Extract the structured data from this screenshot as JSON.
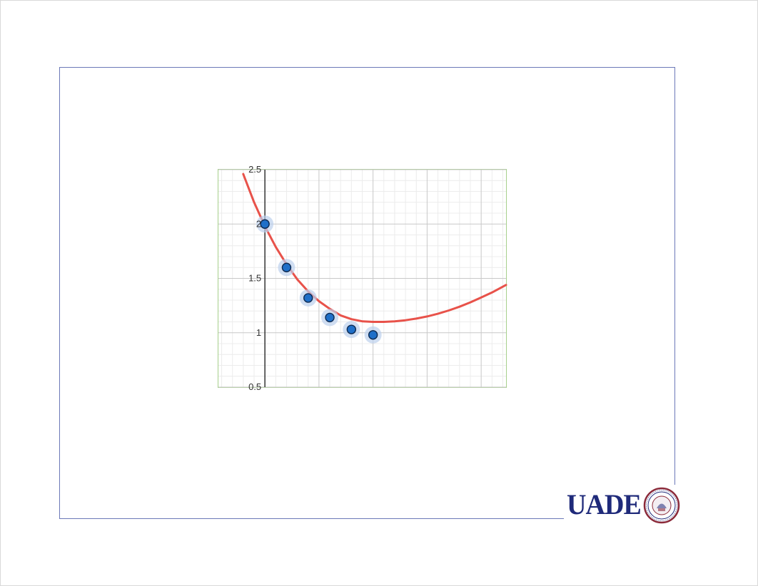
{
  "logo": {
    "text": "UADE",
    "seal": "university-seal",
    "brand_color": "#1f2a7a",
    "seal_color": "#8b2a3a"
  },
  "colors": {
    "curve": "#e8524a",
    "point_fill": "#1f6fc8",
    "point_halo": "#bcd0ec",
    "frame_border": "#6b78b8",
    "chart_border": "#a7d08c",
    "grid_major": "#c8c8c8",
    "grid_minor": "#ececec"
  },
  "chart_data": {
    "type": "scatter",
    "title": "",
    "xlabel": "",
    "ylabel": "",
    "grid": true,
    "xlim": [
      -0.43,
      2.23
    ],
    "ylim": [
      0.5,
      2.5
    ],
    "y_ticks": [
      {
        "value": 2.5,
        "label": "2.5"
      },
      {
        "value": 2,
        "label": "2"
      },
      {
        "value": 1.5,
        "label": "1.5"
      },
      {
        "value": 1,
        "label": "1"
      },
      {
        "value": 0.5,
        "label": "0.5"
      }
    ],
    "points": [
      {
        "x": 0.0,
        "y": 2.0
      },
      {
        "x": 0.2,
        "y": 1.6
      },
      {
        "x": 0.4,
        "y": 1.32
      },
      {
        "x": 0.6,
        "y": 1.14
      },
      {
        "x": 0.8,
        "y": 1.03
      },
      {
        "x": 1.0,
        "y": 0.98
      }
    ],
    "curve": {
      "x": [
        -0.2,
        -0.1,
        0.0,
        0.1,
        0.2,
        0.3,
        0.4,
        0.5,
        0.6,
        0.7,
        0.8,
        0.9,
        1.0,
        1.1,
        1.2,
        1.3,
        1.4,
        1.5,
        1.6,
        1.7,
        1.8,
        1.9,
        2.0,
        2.1,
        2.23
      ],
      "y": [
        2.46,
        2.2,
        1.98,
        1.79,
        1.63,
        1.49,
        1.38,
        1.29,
        1.22,
        1.16,
        1.125,
        1.105,
        1.1,
        1.1,
        1.105,
        1.115,
        1.13,
        1.15,
        1.175,
        1.205,
        1.24,
        1.28,
        1.325,
        1.37,
        1.44
      ]
    }
  }
}
